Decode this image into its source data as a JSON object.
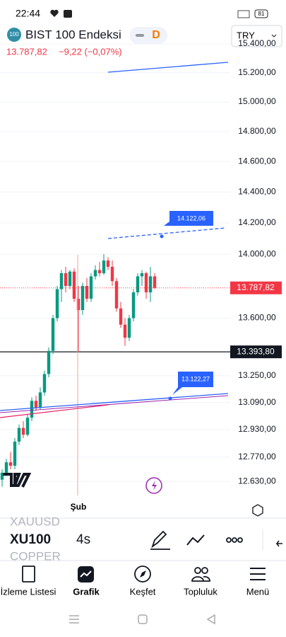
{
  "status_bar": {
    "time": "22:44",
    "battery": "81"
  },
  "header": {
    "logo": "100",
    "title": "BIST 100 Endeksi",
    "badge": "D",
    "price": "13.787,82",
    "change": "−9,22 (−0,07%)",
    "currency": "TRY"
  },
  "chart_data": {
    "type": "candlestick",
    "categories": [
      null,
      null,
      null,
      null,
      null,
      null,
      null,
      null,
      null,
      null,
      null,
      null,
      null,
      null,
      null,
      null,
      null,
      null,
      "Şub",
      null,
      null,
      null,
      null,
      null,
      null,
      null,
      null,
      null,
      null,
      null,
      null,
      null,
      null,
      null,
      null,
      null,
      null
    ],
    "open": [
      12640,
      12680,
      12740,
      12720,
      12860,
      12940,
      12900,
      13000,
      13100,
      13060,
      13150,
      13260,
      13400,
      13600,
      13780,
      13880,
      13800,
      13890,
      13720,
      13650,
      13800,
      13720,
      13860,
      13900,
      13880,
      13960,
      13920,
      13830,
      13660,
      13560,
      13480,
      13600,
      13760,
      13860,
      13880,
      13760,
      13860
    ],
    "high": [
      12700,
      12760,
      12800,
      12880,
      12960,
      12980,
      13020,
      13120,
      13130,
      13180,
      13280,
      13420,
      13620,
      13800,
      13900,
      13920,
      13900,
      13910,
      13800,
      13820,
      13850,
      13880,
      13930,
      13950,
      14000,
      13980,
      13960,
      13850,
      13700,
      13600,
      13620,
      13780,
      13880,
      13900,
      13890,
      13920,
      13880
    ],
    "low": [
      12600,
      12660,
      12700,
      12700,
      12840,
      12880,
      12890,
      12980,
      13040,
      13050,
      13130,
      13240,
      13380,
      13580,
      13700,
      13760,
      13780,
      13700,
      13394,
      13620,
      13700,
      13700,
      13840,
      13860,
      13870,
      13900,
      13800,
      13640,
      13540,
      13430,
      13460,
      13580,
      13740,
      13800,
      13720,
      13700,
      13780
    ],
    "close": [
      12680,
      12740,
      12720,
      12860,
      12940,
      12900,
      13000,
      13100,
      13060,
      13150,
      13260,
      13400,
      13600,
      13780,
      13880,
      13800,
      13890,
      13720,
      13650,
      13800,
      13720,
      13860,
      13900,
      13880,
      13960,
      13920,
      13830,
      13660,
      13560,
      13480,
      13600,
      13760,
      13860,
      13880,
      13760,
      13860,
      13787.82
    ],
    "up_color": "#089981",
    "down_color": "#f23645",
    "log_scale": true,
    "ylim": [
      12550,
      15400
    ],
    "yticks": [
      {
        "value": 15400,
        "label": "15.400,00"
      },
      {
        "value": 15200,
        "label": "15.200,00"
      },
      {
        "value": 15000,
        "label": "15.000,00"
      },
      {
        "value": 14800,
        "label": "14.800,00"
      },
      {
        "value": 14600,
        "label": "14.600,00"
      },
      {
        "value": 14400,
        "label": "14.400,00"
      },
      {
        "value": 14200,
        "label": "14.200,00"
      },
      {
        "value": 14000,
        "label": "14.000,00"
      },
      {
        "value": 13600,
        "label": "13.600,00"
      },
      {
        "value": 13250,
        "label": "13.250,00"
      },
      {
        "value": 13090,
        "label": "13.090,00"
      },
      {
        "value": 12930,
        "label": "12.930,00"
      },
      {
        "value": 12770,
        "label": "12.770,00"
      },
      {
        "value": 12630,
        "label": "12.630,00"
      }
    ],
    "last_price": {
      "value": 13787.82,
      "label": "13.787,82"
    },
    "horizontal_line": {
      "value": 13393.8,
      "label": "13.393,80"
    },
    "annotations": [
      "14.122,06",
      "13.122,27"
    ]
  },
  "toolbar": {
    "symbols": [
      "XAUUSD",
      "XU100",
      "COPPER"
    ],
    "interval": "4s"
  },
  "nav": [
    "İzleme Listesi",
    "Grafik",
    "Keşfet",
    "Topluluk",
    "Menü"
  ]
}
